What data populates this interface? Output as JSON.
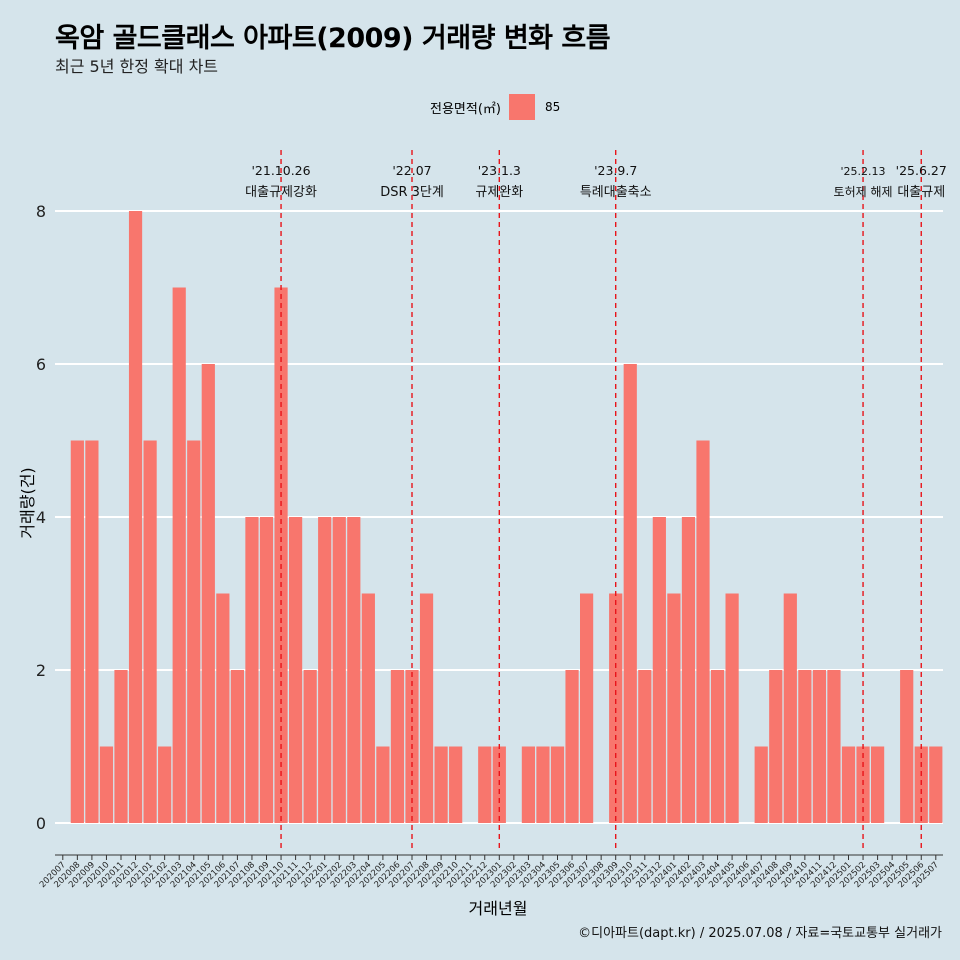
{
  "title": "옥암 골드클래스 아파트(2009) 거래량 변화 흐름",
  "subtitle": "최근 5년 한정 확대 차트",
  "caption": "©디아파트(dapt.kr) / 2025.07.08 / 자료=국토교통부 실거래가",
  "legend": {
    "title": "전용면적(㎡)",
    "entries": [
      {
        "label": "85",
        "color": "#f8766d"
      }
    ]
  },
  "colors": {
    "background": "#d5e4eb",
    "bar": "#f8766d",
    "gridline": "#ffffff",
    "event_line": "#e8141a"
  },
  "chart_data": {
    "type": "bar",
    "xlabel": "거래년월",
    "ylabel": "거래량(건)",
    "ylim": [
      0,
      8
    ],
    "yticks": [
      0,
      2,
      4,
      6,
      8
    ],
    "grid": "horizontal major lines",
    "legend_position": "top",
    "categories": [
      "202007",
      "202008",
      "202009",
      "202010",
      "202011",
      "202012",
      "202101",
      "202102",
      "202103",
      "202104",
      "202105",
      "202106",
      "202107",
      "202108",
      "202109",
      "202110",
      "202111",
      "202112",
      "202201",
      "202202",
      "202203",
      "202204",
      "202205",
      "202206",
      "202207",
      "202208",
      "202209",
      "202210",
      "202211",
      "202212",
      "202301",
      "202302",
      "202303",
      "202304",
      "202305",
      "202306",
      "202307",
      "202308",
      "202309",
      "202310",
      "202311",
      "202312",
      "202401",
      "202402",
      "202403",
      "202404",
      "202405",
      "202406",
      "202407",
      "202408",
      "202409",
      "202410",
      "202411",
      "202412",
      "202501",
      "202502",
      "202503",
      "202504",
      "202505",
      "202506",
      "202507"
    ],
    "series": [
      {
        "name": "85",
        "values": [
          null,
          5,
          5,
          1,
          2,
          8,
          5,
          1,
          7,
          5,
          6,
          3,
          2,
          4,
          4,
          7,
          4,
          2,
          4,
          4,
          4,
          3,
          1,
          2,
          2,
          3,
          1,
          1,
          null,
          1,
          1,
          null,
          1,
          1,
          1,
          2,
          3,
          null,
          3,
          6,
          2,
          4,
          3,
          4,
          5,
          2,
          3,
          null,
          1,
          2,
          3,
          2,
          2,
          2,
          1,
          1,
          1,
          null,
          2,
          1,
          1
        ]
      }
    ],
    "annotations": [
      {
        "category": "202110",
        "date": "'21.10.26",
        "label": "대출규제강화"
      },
      {
        "category": "202207",
        "date": "'22.07",
        "label": "DSR 3단계"
      },
      {
        "category": "202301",
        "date": "'23.1.3",
        "label": "규제완화"
      },
      {
        "category": "202309",
        "date": "'23.9.7",
        "label": "특례대출축소"
      },
      {
        "category": "202502",
        "date": "'25.2.13",
        "label": "토허제 해제"
      },
      {
        "category": "202506",
        "date": "'25.6.27",
        "label": "대출규제"
      }
    ]
  }
}
